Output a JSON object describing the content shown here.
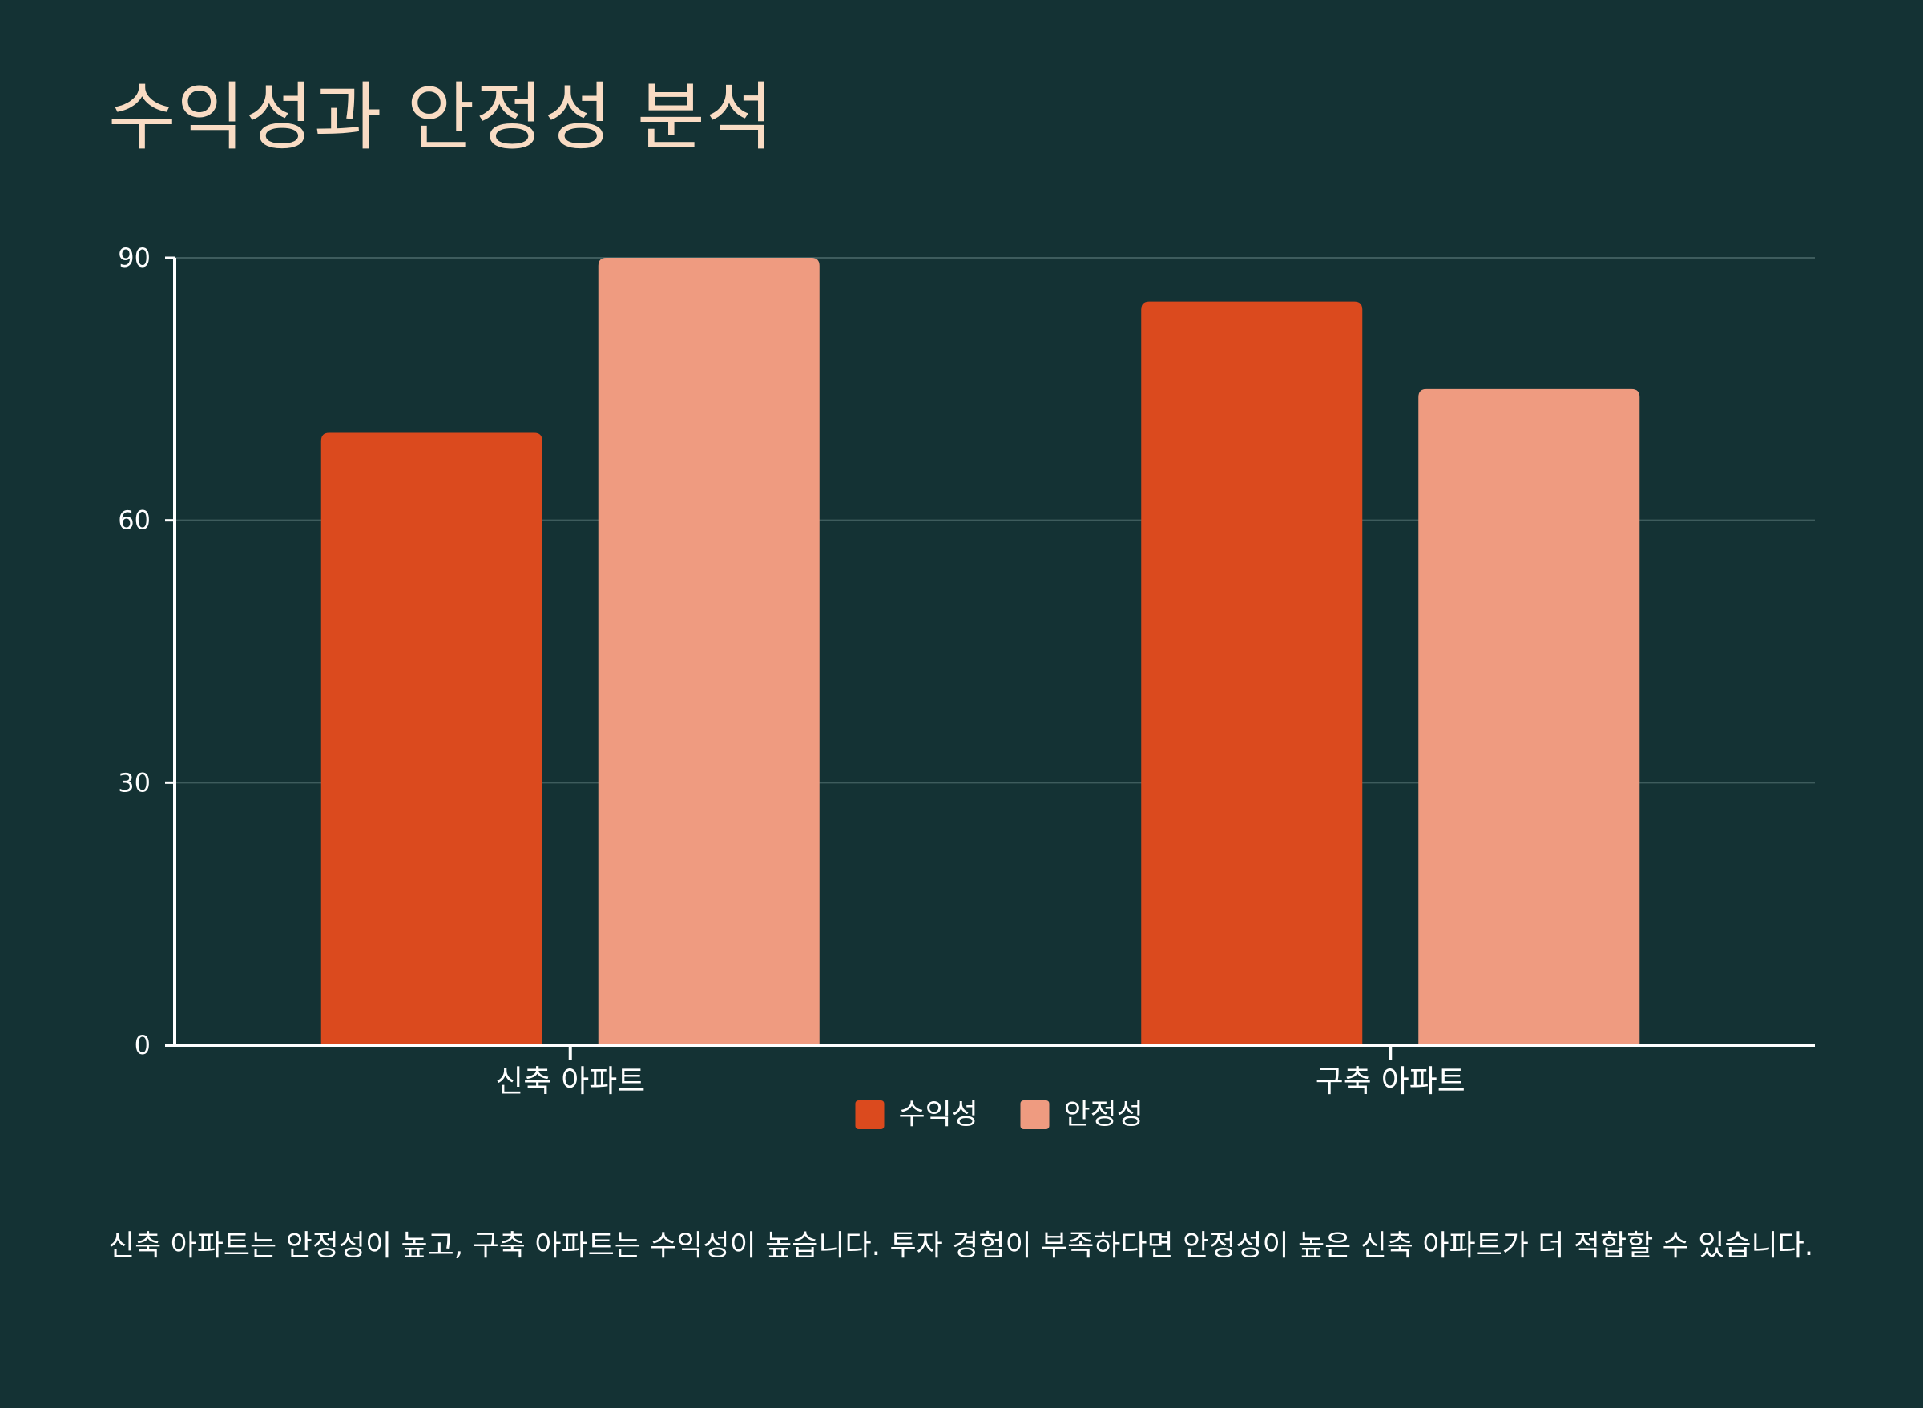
{
  "title": "수익성과 안정성 분석",
  "description": "신축 아파트는 안정성이 높고, 구축 아파트는 수익성이 높습니다. 투자 경험이 부족하다면 안정성이 높은 신축 아파트가 더 적합할 수 있습니다.",
  "colors": {
    "background": "#143234",
    "title": "#f9dcc4",
    "series_profitability": "#db4a1e",
    "series_stability": "#ef9b80",
    "grid": "#3e5c5d",
    "axis": "#ffffff"
  },
  "chart_data": {
    "type": "bar",
    "title": "수익성과 안정성 분석",
    "categories": [
      "신축 아파트",
      "구축 아파트"
    ],
    "series": [
      {
        "name": "수익성",
        "values": [
          70,
          85
        ],
        "color": "#db4a1e"
      },
      {
        "name": "안정성",
        "values": [
          90,
          75
        ],
        "color": "#ef9b80"
      }
    ],
    "ylim": [
      0,
      90
    ],
    "yticks": [
      0,
      30,
      60,
      90
    ],
    "grid": true,
    "legend_position": "bottom-center"
  }
}
